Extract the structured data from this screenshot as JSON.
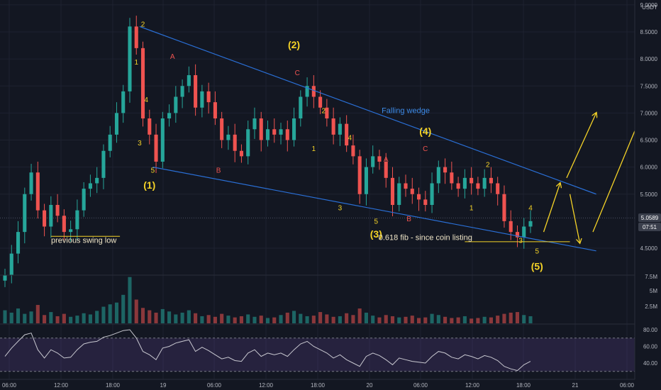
{
  "theme": {
    "background": "#131722",
    "grid": "#1e2230",
    "axis_text": "#b2b5be",
    "up": "#26a69a",
    "down": "#ef5350",
    "wedge_line": "#2a6fd6",
    "wave_label": "#f5d327",
    "corrective_label": "#ef5350",
    "arrow": "#f5d327",
    "rsi_line": "#c8c8d0",
    "rsi_band": "#7e57c2"
  },
  "chart_data": [
    {
      "type": "candlestick",
      "currency": "USDT",
      "x_ticks": [
        "06:00",
        "12:00",
        "18:00",
        "19",
        "06:00",
        "12:00",
        "18:00",
        "20",
        "06:00",
        "12:00",
        "18:00",
        "21",
        "06:00"
      ],
      "y_ticks": [
        "9.0000",
        "8.5000",
        "8.0000",
        "7.5000",
        "7.0000",
        "6.5000",
        "6.0000",
        "5.5000",
        "4.5000"
      ],
      "ylim": [
        3.8,
        9.1
      ],
      "last_price": "5.0589",
      "countdown": "07:51",
      "series": [
        {
          "name": "price_path",
          "values": [
            4.0,
            4.4,
            4.8,
            5.5,
            5.9,
            5.2,
            4.9,
            5.3,
            5.1,
            4.8,
            4.85,
            5.2,
            5.6,
            5.7,
            5.8,
            6.3,
            6.6,
            7.0,
            7.4,
            8.6,
            8.2,
            6.9,
            6.6,
            6.1,
            6.9,
            7.0,
            7.3,
            7.5,
            7.7,
            7.1,
            7.4,
            7.2,
            6.9,
            6.5,
            6.6,
            6.3,
            6.2,
            6.7,
            6.9,
            6.5,
            6.7,
            6.6,
            6.7,
            6.5,
            6.9,
            7.3,
            7.5,
            7.3,
            7.1,
            6.9,
            6.6,
            6.8,
            6.4,
            6.2,
            5.5,
            6.0,
            6.2,
            6.1,
            5.8,
            5.3,
            5.7,
            5.6,
            5.5,
            5.4,
            5.3,
            5.7,
            6.0,
            5.9,
            5.7,
            5.6,
            5.8,
            5.7,
            5.6,
            5.8,
            5.7,
            5.5,
            5.0,
            4.8,
            4.7,
            4.9,
            5.0
          ]
        }
      ],
      "annotations": {
        "wave_labels": [
          {
            "text": "2",
            "x": 21,
            "y": 8.6,
            "color": "wave"
          },
          {
            "text": "1",
            "x": 20,
            "y": 7.9,
            "color": "wave"
          },
          {
            "text": "4",
            "x": 21.5,
            "y": 7.2,
            "color": "wave"
          },
          {
            "text": "3",
            "x": 20.5,
            "y": 6.4,
            "color": "wave"
          },
          {
            "text": "5",
            "x": 22.5,
            "y": 5.9,
            "color": "wave"
          },
          {
            "text": "(1)",
            "x": 22,
            "y": 5.6,
            "color": "wave"
          },
          {
            "text": "A",
            "x": 25.5,
            "y": 8.0,
            "color": "corrective"
          },
          {
            "text": "B",
            "x": 32.5,
            "y": 5.9,
            "color": "corrective"
          },
          {
            "text": "(2)",
            "x": 44,
            "y": 8.2,
            "color": "wave"
          },
          {
            "text": "C",
            "x": 44.5,
            "y": 7.7,
            "color": "corrective"
          },
          {
            "text": "2",
            "x": 48.5,
            "y": 7.0,
            "color": "wave"
          },
          {
            "text": "1",
            "x": 47,
            "y": 6.3,
            "color": "wave"
          },
          {
            "text": "4",
            "x": 52.5,
            "y": 6.5,
            "color": "wave"
          },
          {
            "text": "3",
            "x": 51,
            "y": 5.2,
            "color": "wave"
          },
          {
            "text": "5",
            "x": 56.5,
            "y": 4.95,
            "color": "wave"
          },
          {
            "text": "(3)",
            "x": 56.5,
            "y": 4.7,
            "color": "wave"
          },
          {
            "text": "A",
            "x": 58,
            "y": 6.1,
            "color": "corrective"
          },
          {
            "text": "B",
            "x": 61.5,
            "y": 5.0,
            "color": "corrective"
          },
          {
            "text": "(4)",
            "x": 64,
            "y": 6.6,
            "color": "wave"
          },
          {
            "text": "C",
            "x": 64,
            "y": 6.3,
            "color": "corrective"
          },
          {
            "text": "2",
            "x": 73.5,
            "y": 6.0,
            "color": "wave"
          },
          {
            "text": "1",
            "x": 71,
            "y": 5.2,
            "color": "wave"
          },
          {
            "text": "4",
            "x": 80,
            "y": 5.2,
            "color": "wave"
          },
          {
            "text": "3",
            "x": 78.5,
            "y": 4.6,
            "color": "wave"
          },
          {
            "text": "5",
            "x": 81,
            "y": 4.4,
            "color": "wave"
          },
          {
            "text": "(5)",
            "x": 81,
            "y": 4.1,
            "color": "wave"
          }
        ],
        "texts": [
          {
            "text": "Falling wedge",
            "x": 61,
            "y": 7.0,
            "color": "wedge"
          },
          {
            "text": "previous swing low",
            "x": 12,
            "y": 4.6,
            "color": "wave"
          },
          {
            "text": "0.618 fib - since coin listing",
            "x": 64,
            "y": 4.65,
            "color": "wave"
          }
        ],
        "wedge_upper": [
          [
            20.5,
            8.6
          ],
          [
            90,
            5.5
          ]
        ],
        "wedge_lower": [
          [
            22.5,
            6.0
          ],
          [
            90,
            4.45
          ]
        ],
        "swing_low_line": [
          [
            7,
            4.72
          ],
          [
            17.5,
            4.72
          ],
          4.72
        ],
        "fib_line": [
          [
            70,
            4.62
          ],
          [
            86,
            4.62
          ],
          4.62
        ],
        "arrows": [
          [
            [
              82,
              4.8
            ],
            [
              84.5,
              5.7
            ]
          ],
          [
            [
              85.5,
              5.8
            ],
            [
              90,
              7.0
            ]
          ],
          [
            [
              86,
              5.5
            ],
            [
              87.5,
              4.6
            ]
          ],
          [
            [
              89.5,
              4.8
            ],
            [
              97,
              7.0
            ]
          ]
        ]
      }
    },
    {
      "type": "bar",
      "name": "volume",
      "y_ticks": [
        "7.5M",
        "5M",
        "2.5M"
      ],
      "ylim": [
        0,
        8000000
      ],
      "values": [
        2.2,
        1.8,
        2.5,
        1.6,
        2.0,
        3.1,
        1.4,
        1.9,
        1.2,
        1.6,
        1.1,
        1.3,
        1.7,
        1.5,
        2.1,
        2.8,
        3.2,
        3.5,
        4.8,
        7.8,
        4.0,
        2.6,
        2.2,
        1.8,
        2.4,
        2.0,
        1.5,
        1.8,
        2.2,
        1.7,
        1.2,
        1.4,
        1.1,
        1.6,
        1.3,
        1.0,
        1.2,
        1.5,
        1.1,
        1.3,
        0.9,
        1.0,
        1.4,
        1.8,
        2.1,
        1.6,
        1.2,
        1.3,
        1.9,
        1.5,
        1.1,
        1.2,
        1.7,
        1.4,
        2.5,
        1.8,
        1.3,
        1.0,
        1.4,
        1.2,
        1.0,
        1.1,
        1.3,
        0.9,
        1.0,
        1.6,
        1.4,
        1.1,
        0.9,
        1.0,
        1.2,
        0.8,
        0.9,
        1.1,
        1.0,
        1.3,
        1.6,
        1.8,
        1.9,
        1.4,
        1.2
      ]
    },
    {
      "type": "line",
      "name": "rsi",
      "y_ticks": [
        "80.00",
        "60.00",
        "40.00"
      ],
      "ylim": [
        28,
        82
      ],
      "band": [
        30,
        70
      ],
      "values": [
        48,
        58,
        66,
        74,
        76,
        56,
        46,
        56,
        52,
        46,
        47,
        56,
        63,
        65,
        66,
        71,
        73,
        76,
        79,
        80,
        70,
        54,
        50,
        44,
        58,
        60,
        64,
        66,
        68,
        54,
        59,
        55,
        50,
        45,
        47,
        43,
        42,
        52,
        56,
        48,
        52,
        50,
        52,
        48,
        56,
        63,
        66,
        60,
        56,
        52,
        46,
        50,
        44,
        40,
        36,
        48,
        52,
        49,
        44,
        38,
        46,
        44,
        42,
        41,
        40,
        48,
        54,
        52,
        47,
        45,
        50,
        48,
        45,
        49,
        47,
        43,
        36,
        33,
        31,
        38,
        42
      ]
    }
  ]
}
